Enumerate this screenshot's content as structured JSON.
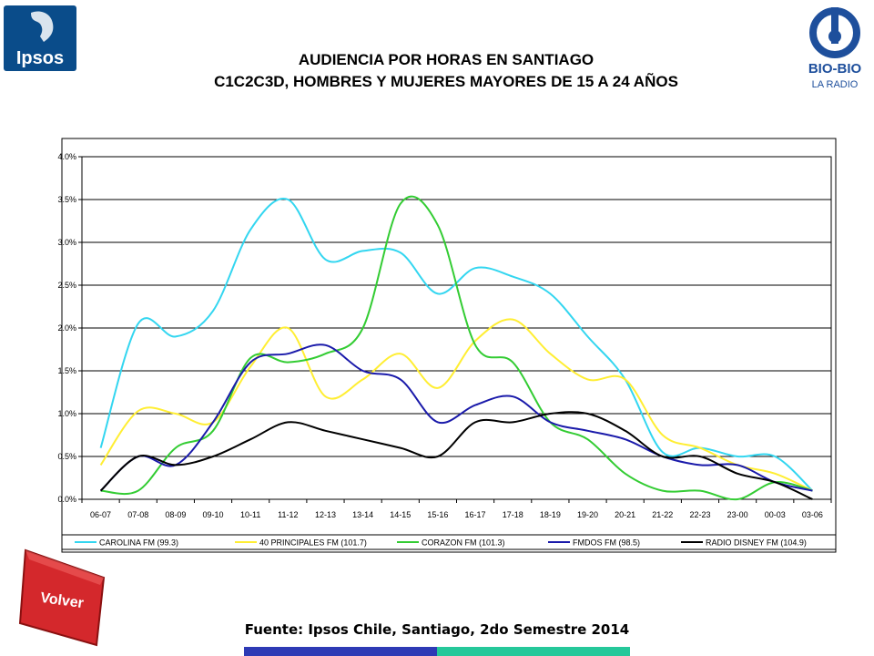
{
  "logos": {
    "ipsos": "Ipsos",
    "biobio_main": "BIO-BIO",
    "biobio_sub": "LA RADIO"
  },
  "title": {
    "line1": "AUDIENCIA POR HORAS EN SANTIAGO",
    "line2": "C1C2C3D, HOMBRES Y MUJERES MAYORES DE 15 A 24 AÑOS"
  },
  "volver": "Volver",
  "source": "Fuente: Ipsos Chile, Santiago, 2do Semestre 2014",
  "colors": {
    "ipsos_blue": "#0a4c8a",
    "volver_red": "#d4282c",
    "bar_blue": "#2e3ab5",
    "bar_green": "#25c89a"
  },
  "chart_data": {
    "type": "line",
    "smooth": true,
    "grid": "horizontal",
    "legend_position": "bottom",
    "ylim": [
      0,
      0.04
    ],
    "y_ticks": [
      "0.0%",
      "0.5%",
      "1.0%",
      "1.5%",
      "2.0%",
      "2.5%",
      "3.0%",
      "3.5%",
      "4.0%"
    ],
    "categories": [
      "06-07",
      "07-08",
      "08-09",
      "09-10",
      "10-11",
      "11-12",
      "12-13",
      "13-14",
      "14-15",
      "15-16",
      "16-17",
      "17-18",
      "18-19",
      "19-20",
      "20-21",
      "21-22",
      "22-23",
      "23-00",
      "00-03",
      "03-06"
    ],
    "series": [
      {
        "name": "CAROLINA FM (99.3)",
        "color": "#33d6f0",
        "values": [
          0.006,
          0.0205,
          0.019,
          0.022,
          0.0315,
          0.035,
          0.028,
          0.029,
          0.0288,
          0.024,
          0.027,
          0.026,
          0.024,
          0.019,
          0.014,
          0.0055,
          0.006,
          0.005,
          0.005,
          0.001
        ]
      },
      {
        "name": "40 PRINCIPALES FM (101.7)",
        "color": "#ffee33",
        "values": [
          0.004,
          0.0103,
          0.01,
          0.009,
          0.0155,
          0.02,
          0.012,
          0.014,
          0.017,
          0.013,
          0.0185,
          0.021,
          0.017,
          0.014,
          0.014,
          0.0075,
          0.006,
          0.004,
          0.003,
          0.001
        ]
      },
      {
        "name": "CORAZON FM (101.3)",
        "color": "#33cc33",
        "values": [
          0.001,
          0.001,
          0.006,
          0.008,
          0.0165,
          0.016,
          0.017,
          0.02,
          0.0345,
          0.032,
          0.018,
          0.016,
          0.009,
          0.007,
          0.003,
          0.001,
          0.001,
          0.0,
          0.002,
          0.001
        ]
      },
      {
        "name": "FMDOS FM (98.5)",
        "color": "#1a1aaa",
        "values": [
          0.001,
          0.005,
          0.004,
          0.009,
          0.016,
          0.017,
          0.018,
          0.015,
          0.014,
          0.009,
          0.011,
          0.012,
          0.009,
          0.008,
          0.007,
          0.005,
          0.004,
          0.004,
          0.002,
          0.001
        ]
      },
      {
        "name": "RADIO DISNEY FM (104.9)",
        "color": "#000000",
        "values": [
          0.001,
          0.005,
          0.004,
          0.005,
          0.007,
          0.009,
          0.008,
          0.007,
          0.006,
          0.005,
          0.009,
          0.009,
          0.01,
          0.01,
          0.008,
          0.005,
          0.005,
          0.003,
          0.002,
          0.0
        ]
      }
    ]
  }
}
